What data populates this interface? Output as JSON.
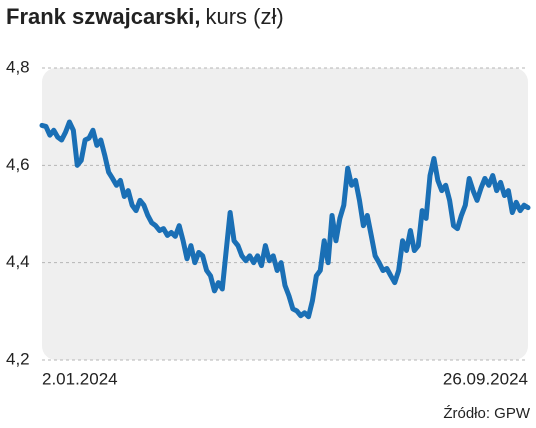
{
  "chart_data": {
    "type": "line",
    "title": "Frank szwajcarski,",
    "subtitle": "kurs (zł)",
    "source": "Źródło: GPW",
    "categories": [
      "2.01.2024",
      null,
      null,
      null,
      null,
      null,
      null,
      null,
      null,
      null,
      null,
      null,
      null,
      null,
      null,
      null,
      null,
      null,
      null,
      null,
      null,
      null,
      null,
      null,
      null,
      null,
      null,
      null,
      null,
      null,
      null,
      null,
      null,
      null,
      null,
      null,
      null,
      null,
      null,
      null,
      null,
      null,
      null,
      null,
      null,
      null,
      null,
      null,
      null,
      null,
      null,
      null,
      null,
      null,
      null,
      null,
      null,
      null,
      null,
      null,
      null,
      null,
      null,
      null,
      null,
      null,
      null,
      null,
      null,
      null,
      null,
      null,
      null,
      null,
      null,
      null,
      null,
      null,
      null,
      null,
      null,
      null,
      null,
      null,
      null,
      null,
      null,
      null,
      null,
      null,
      null,
      null,
      null,
      null,
      null,
      null,
      null,
      null,
      null,
      null,
      null,
      null,
      null,
      null,
      null,
      null,
      null,
      null,
      null,
      null,
      null,
      null,
      null,
      null,
      null,
      null,
      null,
      null,
      null,
      null,
      null,
      null,
      null,
      null,
      "26.09.2024"
    ],
    "values": [
      4.682,
      4.68,
      4.662,
      4.672,
      4.658,
      4.652,
      4.668,
      4.689,
      4.672,
      4.6,
      4.61,
      4.652,
      4.656,
      4.672,
      4.641,
      4.652,
      4.621,
      4.586,
      4.573,
      4.559,
      4.569,
      4.536,
      4.548,
      4.518,
      4.507,
      4.528,
      4.518,
      4.497,
      4.482,
      4.476,
      4.466,
      4.47,
      4.456,
      4.462,
      4.454,
      4.476,
      4.445,
      4.408,
      4.435,
      4.4,
      4.421,
      4.414,
      4.384,
      4.373,
      4.342,
      4.359,
      4.346,
      4.425,
      4.503,
      4.445,
      4.435,
      4.414,
      4.404,
      4.414,
      4.4,
      4.414,
      4.394,
      4.435,
      4.404,
      4.414,
      4.384,
      4.4,
      4.353,
      4.332,
      4.305,
      4.301,
      4.291,
      4.297,
      4.289,
      4.322,
      4.373,
      4.384,
      4.445,
      4.4,
      4.497,
      4.445,
      4.491,
      4.518,
      4.594,
      4.559,
      4.569,
      4.528,
      4.476,
      4.497,
      4.456,
      4.414,
      4.4,
      4.384,
      4.388,
      4.373,
      4.359,
      4.384,
      4.445,
      4.425,
      4.466,
      4.425,
      4.435,
      4.507,
      4.491,
      4.579,
      4.614,
      4.569,
      4.548,
      4.559,
      4.528,
      4.476,
      4.47,
      4.497,
      4.518,
      4.573,
      4.548,
      4.528,
      4.553,
      4.573,
      4.559,
      4.579,
      4.548,
      4.565,
      4.538,
      4.548,
      4.503,
      4.524,
      4.507,
      4.518,
      4.513
    ],
    "color": "#1a6fb5",
    "ylim": [
      4.2,
      4.8
    ],
    "yticks": [
      {
        "value": 4.2,
        "label": "4,2"
      },
      {
        "value": 4.4,
        "label": "4,4"
      },
      {
        "value": 4.6,
        "label": "4,6"
      },
      {
        "value": 4.8,
        "label": "4,8"
      }
    ],
    "grid": true
  }
}
